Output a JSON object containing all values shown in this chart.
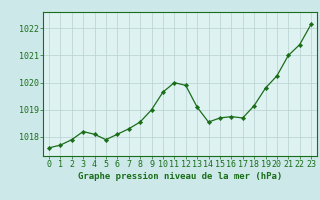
{
  "x": [
    0,
    1,
    2,
    3,
    4,
    5,
    6,
    7,
    8,
    9,
    10,
    11,
    12,
    13,
    14,
    15,
    16,
    17,
    18,
    19,
    20,
    21,
    22,
    23
  ],
  "y": [
    1017.6,
    1017.7,
    1017.9,
    1018.2,
    1018.1,
    1017.9,
    1018.1,
    1018.3,
    1018.55,
    1019.0,
    1019.65,
    1020.0,
    1019.9,
    1019.1,
    1018.55,
    1018.7,
    1018.75,
    1018.7,
    1019.15,
    1019.8,
    1020.25,
    1021.0,
    1021.4,
    1022.15
  ],
  "line_color": "#1a6e1a",
  "marker_color": "#1a6e1a",
  "bg_color": "#cce8e8",
  "axis_bg": "#dff2f2",
  "xlabel": "Graphe pression niveau de la mer (hPa)",
  "xlabel_color": "#1a6e1a",
  "ylabel_ticks": [
    1018,
    1019,
    1020,
    1021,
    1022
  ],
  "ylim": [
    1017.3,
    1022.6
  ],
  "xlim": [
    -0.5,
    23.5
  ],
  "tick_color": "#1a6e1a",
  "spine_color": "#1a6e1a",
  "grid_color": "#b8d0d0",
  "font_size_label": 6.5,
  "font_size_tick": 6
}
